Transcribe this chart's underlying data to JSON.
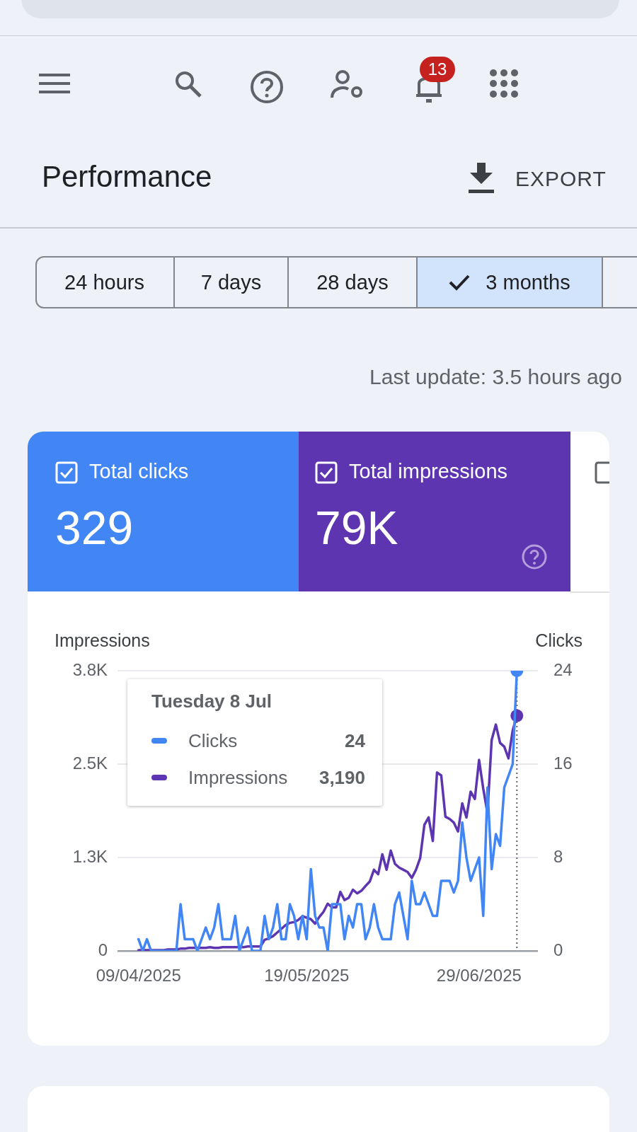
{
  "chart_data": {
    "type": "line",
    "x": [
      "2025-04-09",
      "2025-04-10",
      "2025-04-11",
      "2025-04-12",
      "2025-04-13",
      "2025-04-14",
      "2025-04-15",
      "2025-04-16",
      "2025-04-17",
      "2025-04-18",
      "2025-04-19",
      "2025-04-20",
      "2025-04-21",
      "2025-04-22",
      "2025-04-23",
      "2025-04-24",
      "2025-04-25",
      "2025-04-26",
      "2025-04-27",
      "2025-04-28",
      "2025-04-29",
      "2025-04-30",
      "2025-05-01",
      "2025-05-02",
      "2025-05-03",
      "2025-05-04",
      "2025-05-05",
      "2025-05-06",
      "2025-05-07",
      "2025-05-08",
      "2025-05-09",
      "2025-05-10",
      "2025-05-11",
      "2025-05-12",
      "2025-05-13",
      "2025-05-14",
      "2025-05-15",
      "2025-05-16",
      "2025-05-17",
      "2025-05-18",
      "2025-05-19",
      "2025-05-20",
      "2025-05-21",
      "2025-05-22",
      "2025-05-23",
      "2025-05-24",
      "2025-05-25",
      "2025-05-26",
      "2025-05-27",
      "2025-05-28",
      "2025-05-29",
      "2025-05-30",
      "2025-05-31",
      "2025-06-01",
      "2025-06-02",
      "2025-06-03",
      "2025-06-04",
      "2025-06-05",
      "2025-06-06",
      "2025-06-07",
      "2025-06-08",
      "2025-06-09",
      "2025-06-10",
      "2025-06-11",
      "2025-06-12",
      "2025-06-13",
      "2025-06-14",
      "2025-06-15",
      "2025-06-16",
      "2025-06-17",
      "2025-06-18",
      "2025-06-19",
      "2025-06-20",
      "2025-06-21",
      "2025-06-22",
      "2025-06-23",
      "2025-06-24",
      "2025-06-25",
      "2025-06-26",
      "2025-06-27",
      "2025-06-28",
      "2025-06-29",
      "2025-06-30",
      "2025-07-01",
      "2025-07-02",
      "2025-07-03",
      "2025-07-04",
      "2025-07-05",
      "2025-07-06",
      "2025-07-07",
      "2025-07-08"
    ],
    "series": [
      {
        "name": "Clicks",
        "color": "#4285f4",
        "axis": "y2",
        "values": [
          1,
          0,
          1,
          0,
          0,
          0,
          0,
          0,
          0,
          0,
          4,
          1,
          1,
          1,
          0,
          1,
          2,
          1,
          2,
          4,
          1,
          1,
          1,
          3,
          0,
          1,
          2,
          0,
          0,
          0,
          3,
          1,
          2,
          4,
          1,
          1,
          4,
          3,
          1,
          3,
          1,
          7,
          3,
          2,
          2,
          0,
          4,
          4,
          4,
          1,
          3,
          2,
          4,
          4,
          1,
          2,
          4,
          2,
          1,
          1,
          1,
          4,
          5,
          3,
          1,
          6,
          4,
          4,
          5,
          4,
          3,
          3,
          6,
          6,
          6,
          5,
          6,
          11,
          8,
          6,
          7,
          8,
          3,
          14,
          7,
          10,
          9,
          14,
          15,
          16,
          24
        ]
      },
      {
        "name": "Impressions",
        "color": "#5e35b1",
        "values": [
          10,
          10,
          10,
          10,
          10,
          10,
          10,
          20,
          20,
          20,
          30,
          30,
          40,
          40,
          40,
          40,
          40,
          50,
          40,
          40,
          50,
          50,
          50,
          50,
          50,
          50,
          60,
          60,
          60,
          60,
          150,
          170,
          200,
          250,
          300,
          350,
          380,
          390,
          420,
          470,
          450,
          430,
          370,
          460,
          530,
          640,
          590,
          590,
          800,
          690,
          720,
          830,
          780,
          815,
          880,
          940,
          1100,
          1040,
          1310,
          1100,
          1360,
          1180,
          1130,
          1100,
          1070,
          990,
          1100,
          1260,
          1710,
          1810,
          1490,
          2420,
          2380,
          1820,
          1790,
          1740,
          1620,
          2000,
          1810,
          2160,
          2060,
          2590,
          2200,
          1870,
          2860,
          3070,
          2820,
          2770,
          2610,
          2990,
          3190
        ]
      }
    ],
    "xlim": [
      "2025-04-04",
      "2025-07-13"
    ],
    "xticks": [
      {
        "value": "2025-04-09",
        "label": "09/04/2025"
      },
      {
        "value": "2025-05-19",
        "label": "19/05/2025"
      },
      {
        "value": "2025-06-29",
        "label": "29/06/2025"
      }
    ],
    "ylim": [
      0,
      3800
    ],
    "yticks": [
      0,
      {
        "value": 1266.67,
        "label": "1.3K"
      },
      {
        "value": 2533.33,
        "label": "2.5K"
      },
      {
        "value": 3800,
        "label": "3.8K"
      }
    ],
    "y2lim": [
      0,
      24
    ],
    "y2ticks": [
      0,
      8,
      16,
      24
    ],
    "ylabel": "Impressions",
    "y2label": "Clicks",
    "grid": "y",
    "marker": "none",
    "ref_lines": [
      {
        "axis": "x",
        "value": "2025-07-08",
        "line_style": "dotted",
        "color": "#5f6368"
      }
    ],
    "annotations": [
      "Tuesday 8 Jul",
      "Performance",
      "EXPORT",
      "24 hours",
      "7 days",
      "28 days",
      "3 months",
      "Last update: 3.5 hours ago",
      "Total clicks",
      "329",
      "Total impressions",
      "79K",
      "13",
      "24",
      "3,190"
    ],
    "legend": "top left"
  }
}
